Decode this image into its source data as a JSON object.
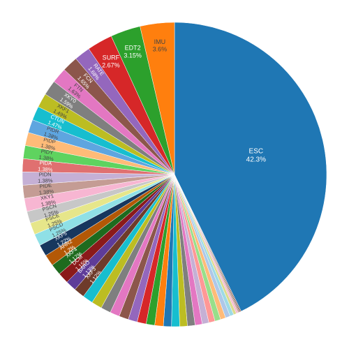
{
  "chart_data": {
    "type": "pie",
    "categories": [
      "ESC",
      null,
      null,
      null,
      null,
      null,
      null,
      null,
      null,
      null,
      null,
      null,
      null,
      null,
      null,
      null,
      null,
      null,
      null,
      null,
      null,
      null,
      null,
      null,
      null,
      null,
      "XKF3",
      "BARO",
      "DCM",
      "XKF4",
      "AHR2",
      "XKF5",
      "PSCD",
      "PSCE",
      "PSCN",
      "XKY1",
      "PIDE",
      "PIDN",
      "PIDA",
      "PIDY",
      "PIDP",
      "PIDR",
      "CTUN",
      "XKF1",
      "XKY0",
      "FTN",
      "FCN",
      "RATE",
      "SURF",
      "EDT2",
      "IMU"
    ],
    "values": [
      42.3,
      0.1,
      0.1,
      0.15,
      0.2,
      0.3,
      0.4,
      0.5,
      0.55,
      0.6,
      0.65,
      0.7,
      0.75,
      0.8,
      0.8,
      0.85,
      0.85,
      0.9,
      0.9,
      0.95,
      0.95,
      1.0,
      1.0,
      1.05,
      1.1,
      1.1,
      1.12,
      1.13,
      1.15,
      1.17,
      1.2,
      1.22,
      1.25,
      1.25,
      1.25,
      1.38,
      1.38,
      1.38,
      1.38,
      1.38,
      1.38,
      1.38,
      1.47,
      1.49,
      1.59,
      1.63,
      1.65,
      1.68,
      2.67,
      3.15,
      3.6
    ],
    "value_labels": [
      "42.3%",
      null,
      null,
      null,
      null,
      null,
      null,
      null,
      null,
      null,
      null,
      null,
      null,
      null,
      null,
      null,
      null,
      null,
      null,
      null,
      null,
      null,
      null,
      null,
      null,
      null,
      "1.12%",
      "1.13%",
      "1.15%",
      "1.17%",
      "1.2%",
      "1.22%",
      "1.25%",
      "1.25%",
      "1.25%",
      "1.38%",
      "1.38%",
      "1.38%",
      "1.38%",
      "1.38%",
      "1.38%",
      "1.38%",
      "1.47%",
      "1.49%",
      "1.59%",
      "1.63%",
      "1.65%",
      "1.68%",
      "2.67%",
      "3.15%",
      "3.6%"
    ],
    "colors": [
      "#1f77b4",
      "#8c564b",
      "#6b4a3a",
      "#c49c94",
      "#f7b6d2",
      "#dbdb8d",
      "#9edae5",
      "#aec7e8",
      "#ffbb78",
      "#98df8a",
      "#ff9896",
      "#c5b0d5",
      "#e377c2",
      "#7f7f7f",
      "#bcbd22",
      "#17becf",
      "#1f77b4",
      "#ff7f0e",
      "#2ca02c",
      "#d62728",
      "#9467bd",
      "#8c564b",
      "#e377c2",
      "#7f7f7f",
      "#bcbd22",
      "#17becf",
      "#6e3b2b",
      "#5e3c99",
      "#8b1a1a",
      "#1e6b1e",
      "#b35806",
      "#17375e",
      "#8fe0e6",
      "#e6e68a",
      "#c7c7c7",
      "#f7b6d2",
      "#c49c94",
      "#c5b0d5",
      "#e07070",
      "#5fd35f",
      "#ffbb78",
      "#5ea5e0",
      "#17becf",
      "#bcbd22",
      "#7f7f7f",
      "#e377c2",
      "#8c564b",
      "#9467bd",
      "#d62728",
      "#2ca02c",
      "#ff7f0e"
    ]
  }
}
